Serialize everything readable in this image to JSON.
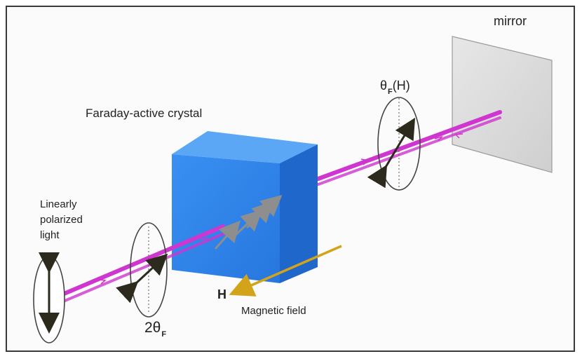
{
  "labels": {
    "mirror": "mirror",
    "crystal": "Faraday-active crystal",
    "linear_light": "Linearly\npolarized\nlight",
    "magnetic_field": "Magnetic field",
    "field_symbol": "H",
    "theta_top_prefix": "θ",
    "theta_top_sub": "F",
    "theta_top_suffix": "(H)",
    "theta_bottom_prefix": "2θ",
    "theta_bottom_sub": "F"
  },
  "colors": {
    "beam": "#cf35cf",
    "crystal_front": "#2f86ea",
    "crystal_top": "#5fa9f5",
    "crystal_side": "#1d66c8",
    "mirror": "#d9d9d9",
    "magnetic_arrow": "#d3a31a",
    "polarization_arrow": "#2b2a1c"
  }
}
